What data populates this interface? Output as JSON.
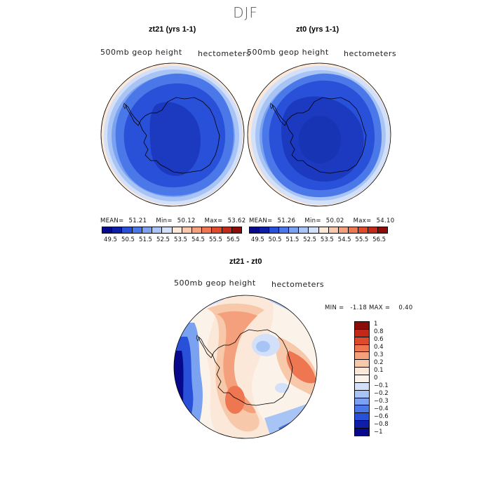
{
  "figure": {
    "suptitle": "DJF"
  },
  "panels": {
    "left": {
      "title": "zt21 (yrs 1-1)",
      "field_label": "500mb geop height",
      "units_label": "hectometers",
      "mean_label": "MEAN=",
      "mean": "51.21",
      "min_label": "Min=",
      "min": "50.12",
      "max_label": "Max=",
      "max": "53.62"
    },
    "right": {
      "title": "zt0 (yrs 1-1)",
      "field_label": "500mb geop height",
      "units_label": "hectometers",
      "mean_label": "MEAN=",
      "mean": "51.26",
      "min_label": "Min=",
      "min": "50.02",
      "max_label": "Max=",
      "max": "54.10"
    },
    "diff": {
      "title": "zt21 - zt0",
      "field_label": "500mb geop height",
      "units_label": "hectometers",
      "minmax_text": "MIN =   -1.18 MAX =    0.40"
    }
  },
  "colorbar_abs": {
    "tick_labels": [
      "49.5",
      "50.5",
      "51.5",
      "52.5",
      "53.5",
      "54.5",
      "55.5",
      "56.5"
    ],
    "colors": [
      "#08088c",
      "#0f1ea6",
      "#2850d8",
      "#4a78e8",
      "#7aa2f0",
      "#a8c4f5",
      "#d2e0fa",
      "#fbe8d8",
      "#f8c8aa",
      "#f4a07c",
      "#ee7650",
      "#e04a2c",
      "#c32818",
      "#8c0c08"
    ]
  },
  "colorbar_diff": {
    "tick_labels": [
      "1",
      "0.8",
      "0.6",
      "0.4",
      "0.3",
      "0.2",
      "0.1",
      "0",
      "−0.1",
      "−0.2",
      "−0.3",
      "−0.4",
      "−0.6",
      "−0.8",
      "−1"
    ],
    "colors": [
      "#8c0c08",
      "#c32818",
      "#e04a2c",
      "#ee7650",
      "#f4a07c",
      "#f8c8aa",
      "#fbe8d8",
      "#fbf3ea",
      "#d2e0fa",
      "#a8c4f5",
      "#7aa2f0",
      "#4a78e8",
      "#2850d8",
      "#0f1ea6",
      "#08088c"
    ]
  },
  "chart_data": [
    {
      "type": "heatmap",
      "title": "zt21 (yrs 1-1)",
      "projection": "south polar stereographic",
      "variable": "500mb geop height",
      "units": "hectometers",
      "mean": 51.21,
      "min": 50.12,
      "max": 53.62,
      "contour_levels": [
        49.5,
        50,
        50.5,
        51,
        51.5,
        52,
        52.5,
        53,
        53.5,
        54,
        54.5,
        55,
        55.5,
        56,
        56.5
      ]
    },
    {
      "type": "heatmap",
      "title": "zt0 (yrs 1-1)",
      "projection": "south polar stereographic",
      "variable": "500mb geop height",
      "units": "hectometers",
      "mean": 51.26,
      "min": 50.02,
      "max": 54.1,
      "contour_levels": [
        49.5,
        50,
        50.5,
        51,
        51.5,
        52,
        52.5,
        53,
        53.5,
        54,
        54.5,
        55,
        55.5,
        56,
        56.5
      ]
    },
    {
      "type": "heatmap",
      "title": "zt21 - zt0",
      "projection": "south polar stereographic",
      "variable": "500mb geop height",
      "units": "hectometers",
      "min": -1.18,
      "max": 0.4,
      "contour_levels": [
        -1,
        -0.8,
        -0.6,
        -0.4,
        -0.3,
        -0.2,
        -0.1,
        0,
        0.1,
        0.2,
        0.3,
        0.4,
        0.6,
        0.8,
        1
      ]
    }
  ]
}
